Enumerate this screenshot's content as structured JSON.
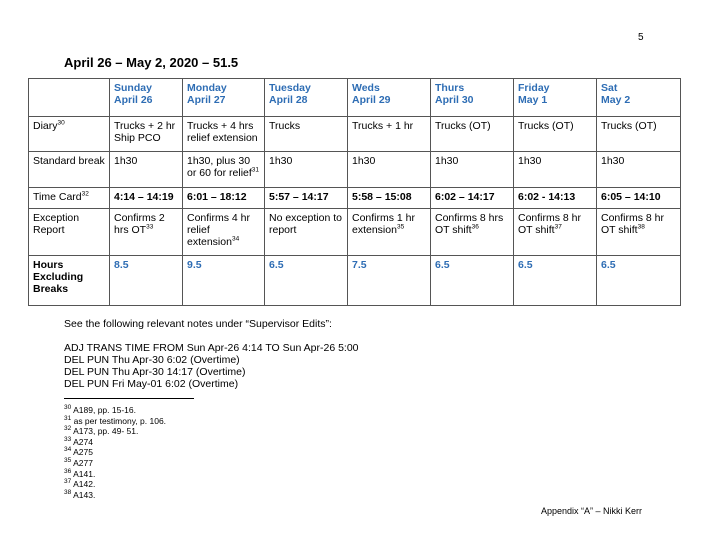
{
  "page_number": "5",
  "title": "April 26 – May 2, 2020 – 51.5",
  "table": {
    "headers": [
      {
        "day": "",
        "date": ""
      },
      {
        "day": "Sunday",
        "date": "April 26"
      },
      {
        "day": "Monday",
        "date": "April 27"
      },
      {
        "day": "Tuesday",
        "date": "April 28"
      },
      {
        "day": "Weds",
        "date": "April 29"
      },
      {
        "day": "Thurs",
        "date": "April 30"
      },
      {
        "day": "Friday",
        "date": "May 1"
      },
      {
        "day": "Sat",
        "date": "May 2"
      }
    ],
    "rows": [
      {
        "label": "Diary",
        "label_sup": "30",
        "cells": [
          {
            "t": "Trucks + 2 hr Ship PCO"
          },
          {
            "t": "Trucks + 4 hrs relief extension"
          },
          {
            "t": "Trucks"
          },
          {
            "t": "Trucks + 1 hr"
          },
          {
            "t": "Trucks (OT)"
          },
          {
            "t": "Trucks (OT)"
          },
          {
            "t": "Trucks (OT)"
          }
        ]
      },
      {
        "label": "Standard break",
        "label_sup": "",
        "cells": [
          {
            "t": "1h30"
          },
          {
            "t": "1h30, plus 30 or 60 for relief",
            "s": "31"
          },
          {
            "t": "1h30"
          },
          {
            "t": "1h30"
          },
          {
            "t": "1h30"
          },
          {
            "t": "1h30"
          },
          {
            "t": "1h30"
          }
        ]
      },
      {
        "label": "Time Card",
        "label_sup": "32",
        "cells": [
          {
            "t": "4:14 – 14:19"
          },
          {
            "t": "6:01 – 18:12"
          },
          {
            "t": "5:57 – 14:17"
          },
          {
            "t": "5:58 – 15:08"
          },
          {
            "t": "6:02 – 14:17"
          },
          {
            "t": "6:02  - 14:13"
          },
          {
            "t": "6:05 – 14:10"
          }
        ]
      },
      {
        "label": "Exception Report",
        "label_sup": "",
        "cells": [
          {
            "t": "Confirms 2 hrs OT",
            "s": "33"
          },
          {
            "t": "Confirms 4 hr relief extension",
            "s": "34"
          },
          {
            "t": "No exception to report"
          },
          {
            "t": "Confirms 1 hr extension",
            "s": "35"
          },
          {
            "t": "Confirms 8 hrs OT shift",
            "s": "36"
          },
          {
            "t": "Confirms 8 hr OT shift",
            "s": "37"
          },
          {
            "t": "Confirms 8 hr OT shift",
            "s": "38"
          }
        ]
      },
      {
        "label": "Hours Excluding Breaks",
        "label_sup": "",
        "cells": [
          {
            "t": "8.5"
          },
          {
            "t": "9.5"
          },
          {
            "t": "6.5"
          },
          {
            "t": "7.5"
          },
          {
            "t": "6.5"
          },
          {
            "t": "6.5"
          },
          {
            "t": "6.5"
          }
        ]
      }
    ]
  },
  "notes_intro": "See the following relevant notes under “Supervisor Edits”:",
  "edits": [
    "ADJ TRANS TIME FROM Sun Apr-26 4:14 TO Sun Apr-26 5:00",
    "DEL PUN Thu Apr-30 6:02 (Overtime)",
    "DEL PUN Thu Apr-30 14:17 (Overtime)",
    "DEL PUN Fri May-01 6:02 (Overtime)"
  ],
  "footnotes": [
    {
      "n": "30",
      "t": " A189, pp. 15-16."
    },
    {
      "n": "31",
      "t": " as per testimony, p. 106."
    },
    {
      "n": "32",
      "t": " A173, pp. 49- 51."
    },
    {
      "n": "33",
      "t": " A274"
    },
    {
      "n": "34",
      "t": " A275"
    },
    {
      "n": "35",
      "t": " A277"
    },
    {
      "n": "36",
      "t": " A141."
    },
    {
      "n": "37",
      "t": " A142."
    },
    {
      "n": "38",
      "t": " A143."
    }
  ],
  "footer": "Appendix “A” – Nikki Kerr",
  "colors": {
    "header_blue": "#2e6db4"
  }
}
